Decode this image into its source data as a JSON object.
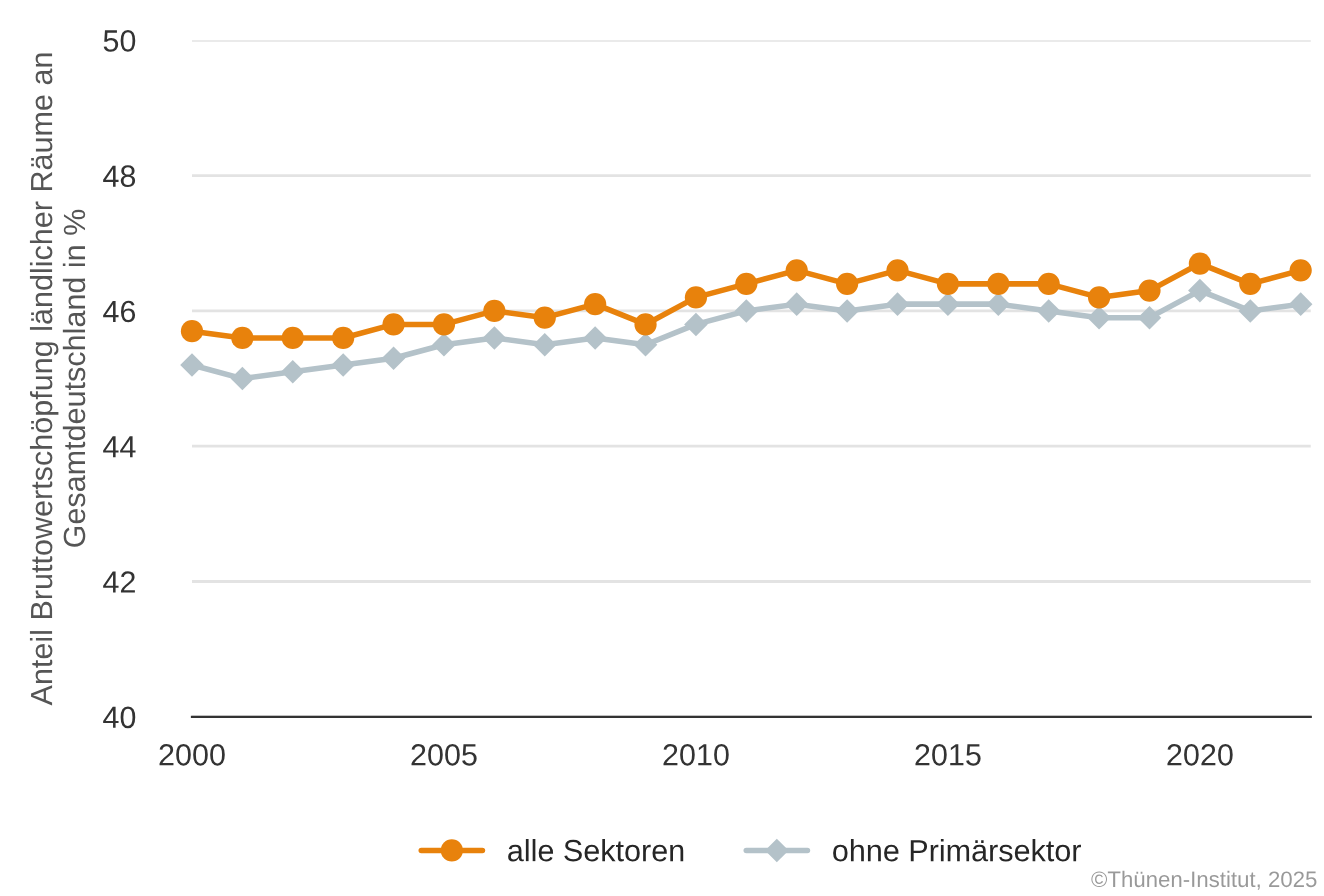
{
  "chart_data": {
    "type": "line",
    "ylabel": "Anteil Bruttowertschöpfung ländlicher Räume an Gesamtdeutschland in %",
    "x": [
      2000,
      2001,
      2002,
      2003,
      2004,
      2005,
      2006,
      2007,
      2008,
      2009,
      2010,
      2011,
      2012,
      2013,
      2014,
      2015,
      2016,
      2017,
      2018,
      2019,
      2020,
      2021,
      2022
    ],
    "series": [
      {
        "name": "alle Sektoren",
        "color": "#e8820c",
        "marker": "circle",
        "values": [
          45.7,
          45.6,
          45.6,
          45.6,
          45.8,
          45.8,
          46.0,
          45.9,
          46.1,
          45.8,
          46.2,
          46.4,
          46.6,
          46.4,
          46.6,
          46.4,
          46.4,
          46.4,
          46.2,
          46.3,
          46.7,
          46.4,
          46.6
        ]
      },
      {
        "name": "ohne Primärsektor",
        "color": "#b4c2c9",
        "marker": "diamond",
        "values": [
          45.2,
          45.0,
          45.1,
          45.2,
          45.3,
          45.5,
          45.6,
          45.5,
          45.6,
          45.5,
          45.8,
          46.0,
          46.1,
          46.0,
          46.1,
          46.1,
          46.1,
          46.0,
          45.9,
          45.9,
          46.3,
          46.0,
          46.1
        ]
      }
    ],
    "xlim": [
      2000,
      2022.2
    ],
    "xticks": [
      2000,
      2005,
      2010,
      2015,
      2020
    ],
    "ylim": [
      40,
      50
    ],
    "yticks": [
      40,
      42,
      44,
      46,
      48,
      50
    ],
    "grid": "y",
    "legend": "bottom",
    "line_style": "solid",
    "annotations": [
      "©Thünen-Institut, 2025"
    ]
  }
}
